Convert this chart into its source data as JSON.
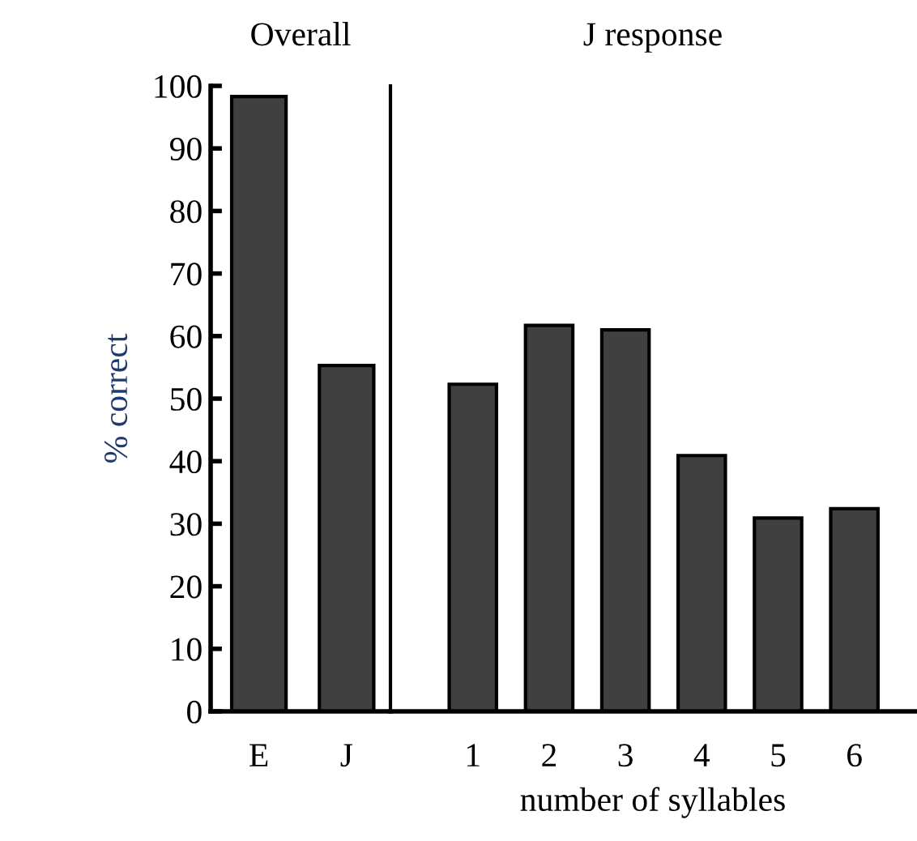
{
  "chart_data": [
    {
      "type": "bar",
      "title": "Overall",
      "ylabel": "% correct",
      "categories": [
        "E",
        "J"
      ],
      "values": [
        98.3,
        55.3
      ],
      "color": "#404040",
      "ylim": [
        0,
        100
      ],
      "yticks": [
        0,
        10,
        20,
        30,
        40,
        50,
        60,
        70,
        80,
        90,
        100
      ],
      "grid": false
    },
    {
      "type": "bar",
      "title": "J response",
      "xlabel": "number of syllables",
      "categories": [
        "1",
        "2",
        "3",
        "4",
        "5",
        "6"
      ],
      "values": [
        52.3,
        61.7,
        61.0,
        40.9,
        30.9,
        32.4
      ],
      "color": "#404040",
      "ylim": [
        0,
        100
      ],
      "tick_labels": "x",
      "grid": false
    }
  ]
}
